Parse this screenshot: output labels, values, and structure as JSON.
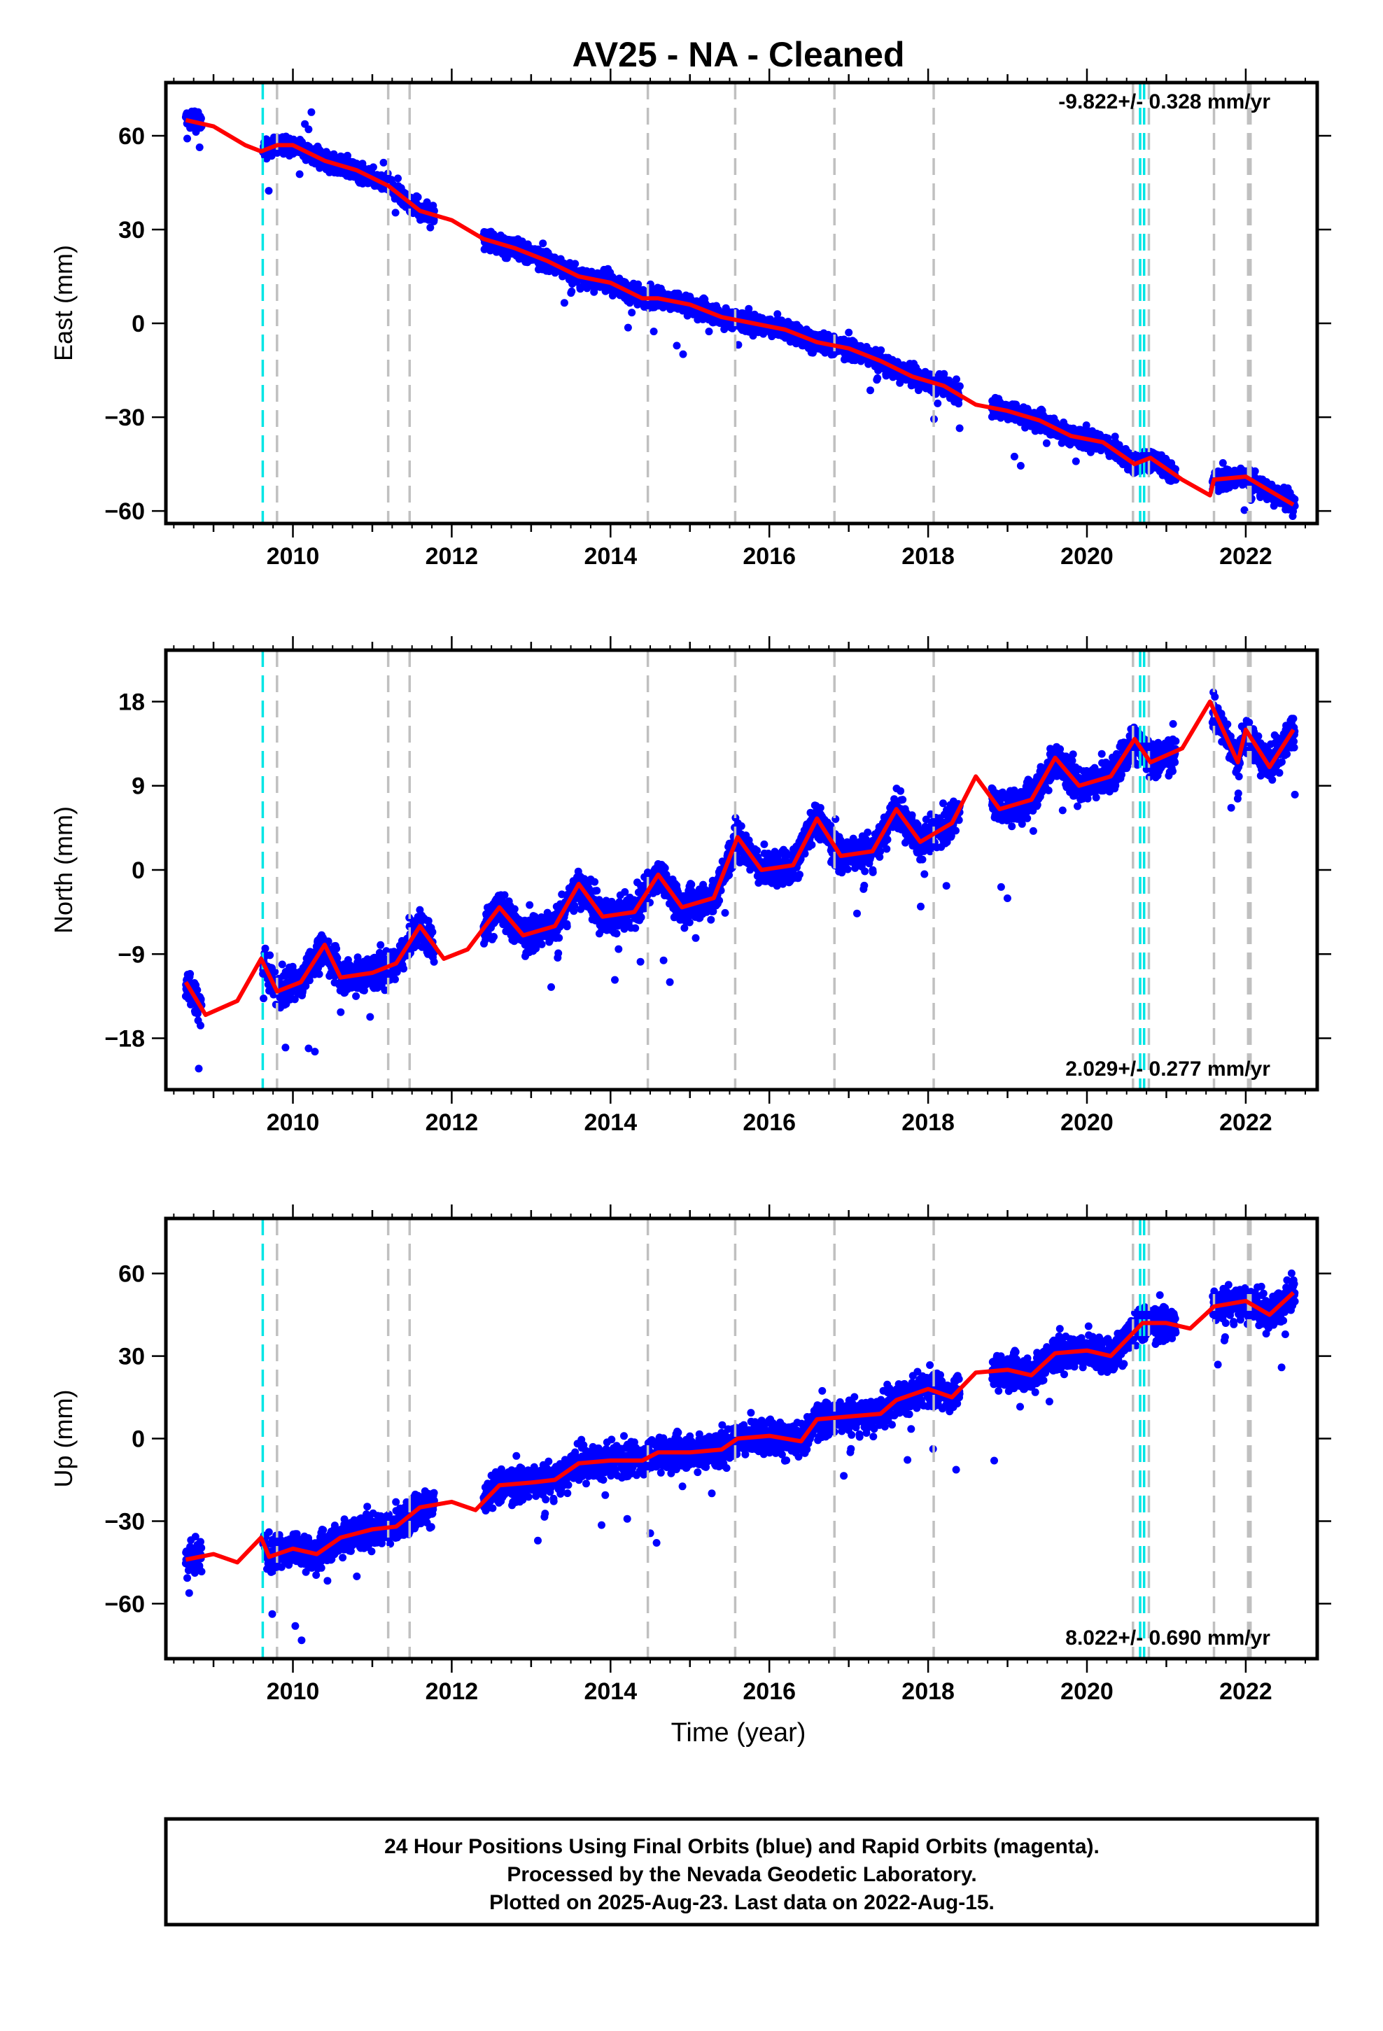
{
  "title": "AV25  - NA - Cleaned",
  "xlabel": "Time (year)",
  "footer": [
    "24 Hour Positions Using Final Orbits (blue) and Rapid Orbits (magenta).",
    "Processed by the Nevada Geodetic Laboratory.",
    "Plotted on 2025-Aug-23. Last data on 2022-Aug-15."
  ],
  "colors": {
    "data": "#0000ff",
    "model": "#ff0000",
    "antenna_change": "#00e5e5",
    "equipment_change": "#c0c0c0"
  },
  "chart_data": [
    {
      "type": "scatter",
      "ylabel": "East (mm)",
      "rate": "-9.822+/- 0.328 mm/yr",
      "rate_position": "top-right",
      "xlim": [
        2008.4,
        2022.9
      ],
      "ylim": [
        -64,
        77
      ],
      "yticks": [
        -60,
        -30,
        0,
        30,
        60
      ],
      "xticks": [
        2010,
        2012,
        2014,
        2016,
        2018,
        2020,
        2022
      ],
      "trend": {
        "slope": -9.822,
        "intercept_at_2008_65": 64,
        "seasonal_amp": 3,
        "jitter": 3
      },
      "model_line": [
        [
          2008.65,
          65
        ],
        [
          2009.0,
          63
        ],
        [
          2009.4,
          57
        ],
        [
          2009.6,
          55
        ],
        [
          2009.8,
          57
        ],
        [
          2010.0,
          57
        ],
        [
          2010.4,
          52
        ],
        [
          2010.8,
          49
        ],
        [
          2011.2,
          44
        ],
        [
          2011.6,
          36
        ],
        [
          2012.0,
          33
        ],
        [
          2012.4,
          27
        ],
        [
          2012.8,
          24
        ],
        [
          2013.2,
          20
        ],
        [
          2013.6,
          15
        ],
        [
          2014.0,
          13
        ],
        [
          2014.4,
          8
        ],
        [
          2014.6,
          8
        ],
        [
          2015.0,
          6
        ],
        [
          2015.4,
          2
        ],
        [
          2015.8,
          0
        ],
        [
          2016.2,
          -2
        ],
        [
          2016.6,
          -6
        ],
        [
          2017.0,
          -8
        ],
        [
          2017.4,
          -12
        ],
        [
          2017.8,
          -17
        ],
        [
          2018.2,
          -20
        ],
        [
          2018.6,
          -26
        ],
        [
          2019.0,
          -28
        ],
        [
          2019.4,
          -31
        ],
        [
          2019.8,
          -36
        ],
        [
          2020.2,
          -38
        ],
        [
          2020.6,
          -45
        ],
        [
          2020.8,
          -43
        ],
        [
          2021.2,
          -50
        ],
        [
          2021.55,
          -55
        ],
        [
          2021.6,
          -50
        ],
        [
          2022.0,
          -49
        ],
        [
          2022.2,
          -52
        ],
        [
          2022.6,
          -58
        ]
      ]
    },
    {
      "type": "scatter",
      "ylabel": "North (mm)",
      "rate": "2.029+/- 0.277 mm/yr",
      "rate_position": "bottom-right",
      "xlim": [
        2008.4,
        2022.9
      ],
      "ylim": [
        -23.5,
        23.5
      ],
      "yticks": [
        -18,
        -9,
        0,
        9,
        18
      ],
      "xticks": [
        2010,
        2012,
        2014,
        2016,
        2018,
        2020,
        2022
      ],
      "trend": {
        "slope": 2.029,
        "intercept_at_2008_65": -13,
        "seasonal_amp": 3,
        "jitter": 1.8
      },
      "model_line": [
        [
          2008.65,
          -12
        ],
        [
          2008.9,
          -15.5
        ],
        [
          2009.3,
          -14
        ],
        [
          2009.6,
          -9.5
        ],
        [
          2009.8,
          -13
        ],
        [
          2010.1,
          -12
        ],
        [
          2010.4,
          -8
        ],
        [
          2010.6,
          -11.5
        ],
        [
          2011.0,
          -11
        ],
        [
          2011.3,
          -10
        ],
        [
          2011.6,
          -6
        ],
        [
          2011.9,
          -9.5
        ],
        [
          2012.2,
          -8.5
        ],
        [
          2012.6,
          -4
        ],
        [
          2012.9,
          -7
        ],
        [
          2013.3,
          -6
        ],
        [
          2013.6,
          -1.5
        ],
        [
          2013.9,
          -5
        ],
        [
          2014.3,
          -4.5
        ],
        [
          2014.6,
          -0.5
        ],
        [
          2014.9,
          -4
        ],
        [
          2015.3,
          -3
        ],
        [
          2015.6,
          3.5
        ],
        [
          2015.9,
          0
        ],
        [
          2016.3,
          0.5
        ],
        [
          2016.6,
          5.5
        ],
        [
          2016.9,
          1.5
        ],
        [
          2017.3,
          2
        ],
        [
          2017.6,
          6.5
        ],
        [
          2017.9,
          3
        ],
        [
          2018.3,
          5
        ],
        [
          2018.6,
          10
        ],
        [
          2018.9,
          6.5
        ],
        [
          2019.3,
          7.5
        ],
        [
          2019.6,
          12
        ],
        [
          2019.9,
          9
        ],
        [
          2020.3,
          10
        ],
        [
          2020.6,
          14
        ],
        [
          2020.8,
          11.5
        ],
        [
          2021.2,
          13
        ],
        [
          2021.55,
          18
        ],
        [
          2021.9,
          11.5
        ],
        [
          2022.0,
          15
        ],
        [
          2022.3,
          11
        ],
        [
          2022.6,
          15
        ]
      ]
    },
    {
      "type": "scatter",
      "ylabel": "Up (mm)",
      "rate": "8.022+/- 0.690 mm/yr",
      "rate_position": "bottom-right",
      "xlim": [
        2008.4,
        2022.9
      ],
      "ylim": [
        -80,
        80
      ],
      "yticks": [
        -60,
        -30,
        0,
        30,
        60
      ],
      "xticks": [
        2010,
        2012,
        2014,
        2016,
        2018,
        2020,
        2022
      ],
      "trend": {
        "slope": 8.022,
        "intercept_at_2008_65": -44,
        "seasonal_amp": 3,
        "jitter": 6
      },
      "model_line": [
        [
          2008.65,
          -44
        ],
        [
          2009.0,
          -42
        ],
        [
          2009.3,
          -45
        ],
        [
          2009.6,
          -36
        ],
        [
          2009.7,
          -43
        ],
        [
          2010.0,
          -40
        ],
        [
          2010.3,
          -42
        ],
        [
          2010.6,
          -36
        ],
        [
          2011.0,
          -33
        ],
        [
          2011.3,
          -32
        ],
        [
          2011.6,
          -25
        ],
        [
          2012.0,
          -23
        ],
        [
          2012.3,
          -26
        ],
        [
          2012.6,
          -17
        ],
        [
          2013.0,
          -16
        ],
        [
          2013.3,
          -15
        ],
        [
          2013.6,
          -9
        ],
        [
          2014.0,
          -8
        ],
        [
          2014.4,
          -8
        ],
        [
          2014.6,
          -5
        ],
        [
          2015.0,
          -5
        ],
        [
          2015.4,
          -4
        ],
        [
          2015.6,
          0
        ],
        [
          2016.0,
          1
        ],
        [
          2016.4,
          -1
        ],
        [
          2016.6,
          7
        ],
        [
          2017.0,
          8
        ],
        [
          2017.4,
          9
        ],
        [
          2017.6,
          14
        ],
        [
          2018.0,
          18
        ],
        [
          2018.3,
          15
        ],
        [
          2018.6,
          24
        ],
        [
          2019.0,
          25
        ],
        [
          2019.3,
          23
        ],
        [
          2019.6,
          31
        ],
        [
          2020.0,
          32
        ],
        [
          2020.3,
          30
        ],
        [
          2020.6,
          39
        ],
        [
          2020.7,
          42
        ],
        [
          2021.0,
          42
        ],
        [
          2021.3,
          40
        ],
        [
          2021.6,
          48
        ],
        [
          2022.0,
          50
        ],
        [
          2022.3,
          45
        ],
        [
          2022.6,
          53
        ]
      ]
    }
  ],
  "steps": {
    "cyan": [
      2009.62,
      2020.67,
      2020.72
    ],
    "gray": [
      2009.8,
      2011.2,
      2011.47,
      2014.47,
      2015.57,
      2016.82,
      2018.07,
      2020.58,
      2020.78,
      2021.6,
      2022.03,
      2022.06
    ]
  },
  "data_gaps": [
    [
      2008.85,
      2009.62
    ],
    [
      2011.78,
      2012.4
    ],
    [
      2018.4,
      2018.8
    ],
    [
      2021.12,
      2021.58
    ]
  ]
}
